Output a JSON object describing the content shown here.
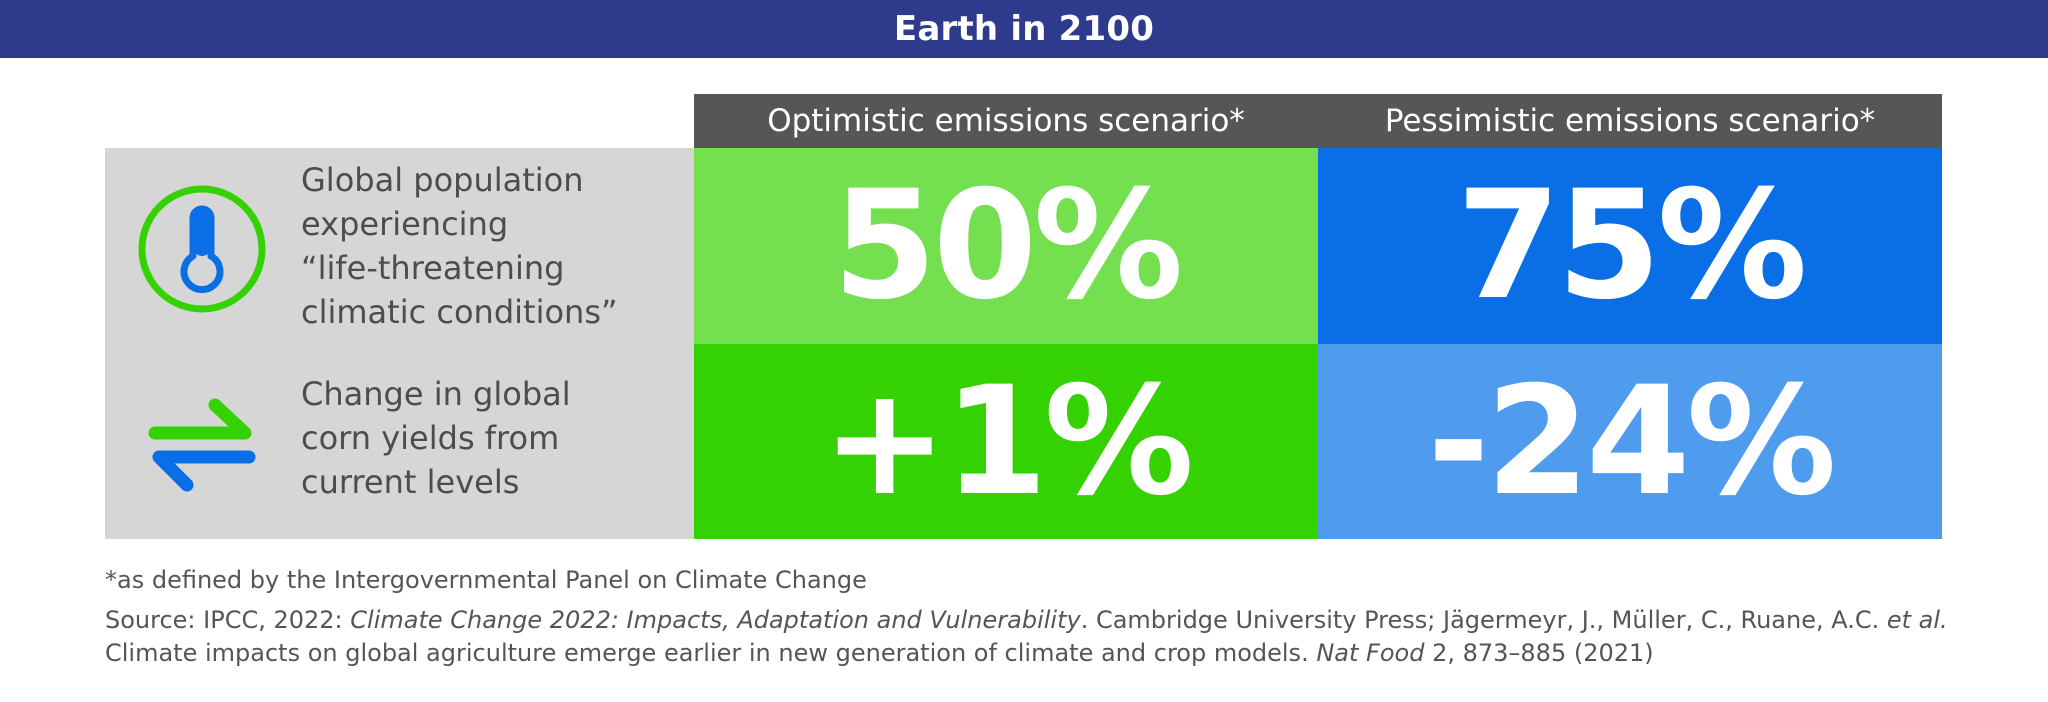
{
  "title": "Earth in 2100",
  "columns": {
    "optimistic": "Optimistic emissions scenario*",
    "pessimistic": "Pessimistic emissions scenario*"
  },
  "rows": [
    {
      "label_lines": [
        "Global population",
        "experiencing",
        "“life-threatening",
        "climatic conditions”"
      ],
      "icon": "thermometer-icon",
      "optimistic": "50%",
      "pessimistic": "75%"
    },
    {
      "label_lines": [
        "Change in global",
        "corn yields from",
        "current levels"
      ],
      "icon": "exchange-arrows-icon",
      "optimistic": "+1%",
      "pessimistic": "-24%"
    }
  ],
  "footnote": "*as defined by the Intergovernmental Panel on Climate Change",
  "source": {
    "prefix": "Source: IPCC, 2022: ",
    "book_title": "Climate Change 2022: Impacts, Adaptation and Vulnerability",
    "after_book": ". Cambridge University Press; Jägermeyr, J., Müller, C., Ruane, A.C. ",
    "et_al": "et al.",
    "line2_start": "Climate impacts on global agriculture emerge earlier in new generation of climate and crop models. ",
    "journal": "Nat Food",
    "citation": " 2, 873–885 (2021)"
  },
  "colors": {
    "title_bar": "#2e3a8c",
    "header": "#555658",
    "label_bg": "#d6d6d6",
    "opt_row1": "#74e04f",
    "pes_row1": "#0a6fe6",
    "opt_row2": "#35d203",
    "pes_row2": "#4f9cef",
    "icon_green": "#35d203",
    "icon_blue": "#0a6fe6"
  }
}
